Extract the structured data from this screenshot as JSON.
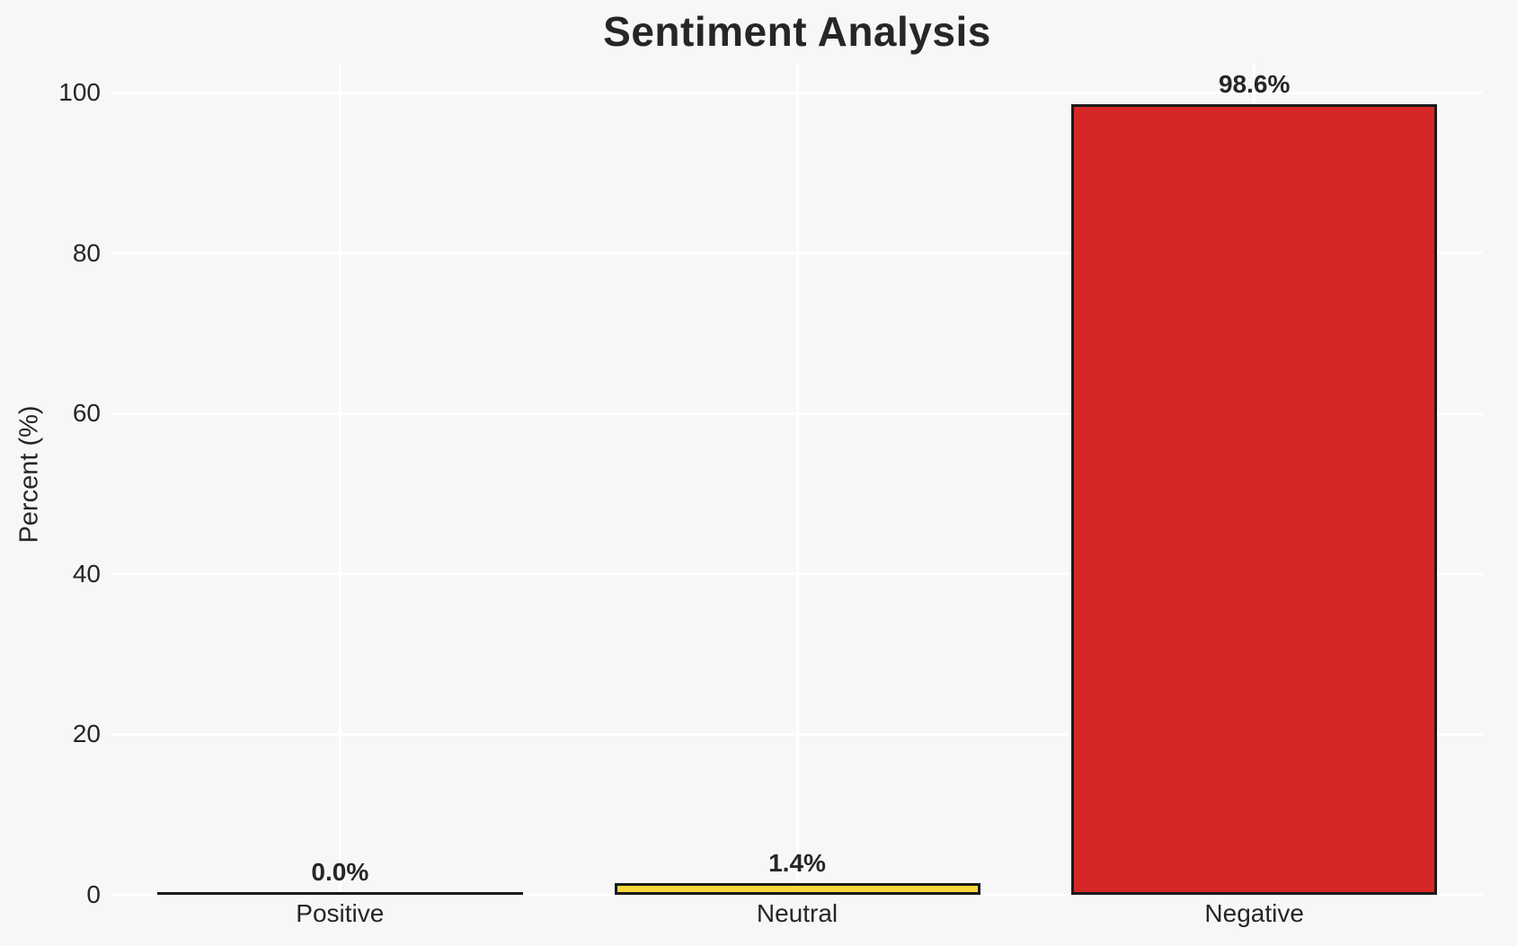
{
  "chart_data": {
    "type": "bar",
    "title": "Sentiment Analysis",
    "xlabel": "",
    "ylabel": "Percent (%)",
    "categories": [
      "Positive",
      "Neutral",
      "Negative"
    ],
    "values": [
      0.0,
      1.4,
      98.6
    ],
    "value_labels": [
      "0.0%",
      "1.4%",
      "98.6%"
    ],
    "bar_colors": [
      "none",
      "#FBD63A",
      "#D62728"
    ],
    "bar_edge_color": "#1a1a1a",
    "yticks": [
      0,
      20,
      40,
      60,
      80,
      100
    ],
    "ylim": [
      0,
      103.7
    ],
    "grid": true,
    "legend": "none",
    "background_color": "#f7f7f7",
    "gridline_color": "#ffffff",
    "text_color": "#262626"
  }
}
